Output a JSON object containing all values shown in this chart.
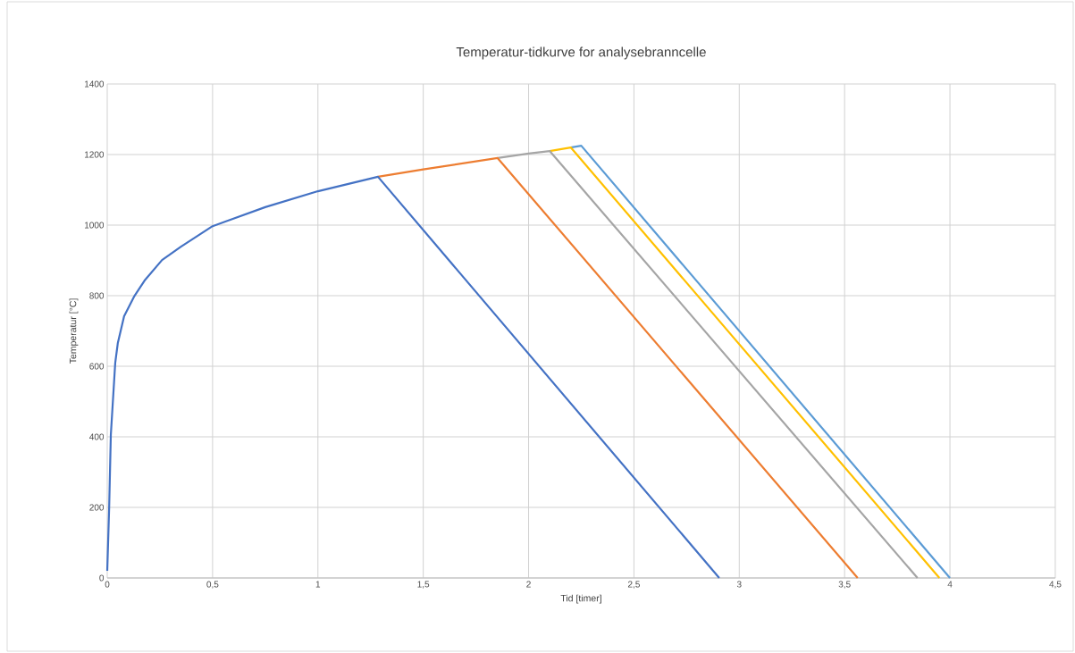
{
  "chart_data": {
    "type": "line",
    "title": "Temperatur-tidkurve for analysebranncelle",
    "xlabel": "Tid [timer]",
    "ylabel": "Temperatur [°C]",
    "xlim": [
      0,
      4.5
    ],
    "ylim": [
      0,
      1400
    ],
    "xticks": [
      0,
      {
        "value": 0.5,
        "label": "0,5"
      },
      1,
      {
        "value": 1.5,
        "label": "1,5"
      },
      2,
      {
        "value": 2.5,
        "label": "2,5"
      },
      3,
      {
        "value": 3.5,
        "label": "3,5"
      },
      4,
      {
        "value": 4.5,
        "label": "4,5"
      }
    ],
    "yticks": [
      0,
      200,
      400,
      600,
      800,
      1000,
      1200,
      1400
    ],
    "grid": true,
    "legend": false,
    "marker": "none",
    "line_style": "solid",
    "series": [
      {
        "color": "#5b9bd5",
        "x": [
          2.2,
          2.25,
          4.0
        ],
        "values": [
          1220,
          1225,
          0
        ]
      },
      {
        "color": "#ffc000",
        "x": [
          2.1,
          2.2,
          3.95
        ],
        "values": [
          1210,
          1220,
          0
        ]
      },
      {
        "color": "#a5a5a5",
        "x": [
          1.853,
          2.0,
          2.1,
          3.846
        ],
        "values": [
          1190,
          1203,
          1210,
          0
        ]
      },
      {
        "color": "#ed7d31",
        "x": [
          1.285,
          1.5,
          1.853,
          3.562
        ],
        "values": [
          1137,
          1158,
          1190,
          0
        ]
      },
      {
        "color": "#4472c4",
        "x": [
          0,
          0.009,
          0.017,
          0.038,
          0.05,
          0.08,
          0.127,
          0.18,
          0.26,
          0.35,
          0.5,
          0.75,
          1.0,
          1.285,
          2.905
        ],
        "values": [
          20,
          197,
          405,
          610,
          665,
          742,
          797,
          845,
          901,
          939,
          997,
          1051,
          1096,
          1137,
          0
        ]
      }
    ]
  }
}
